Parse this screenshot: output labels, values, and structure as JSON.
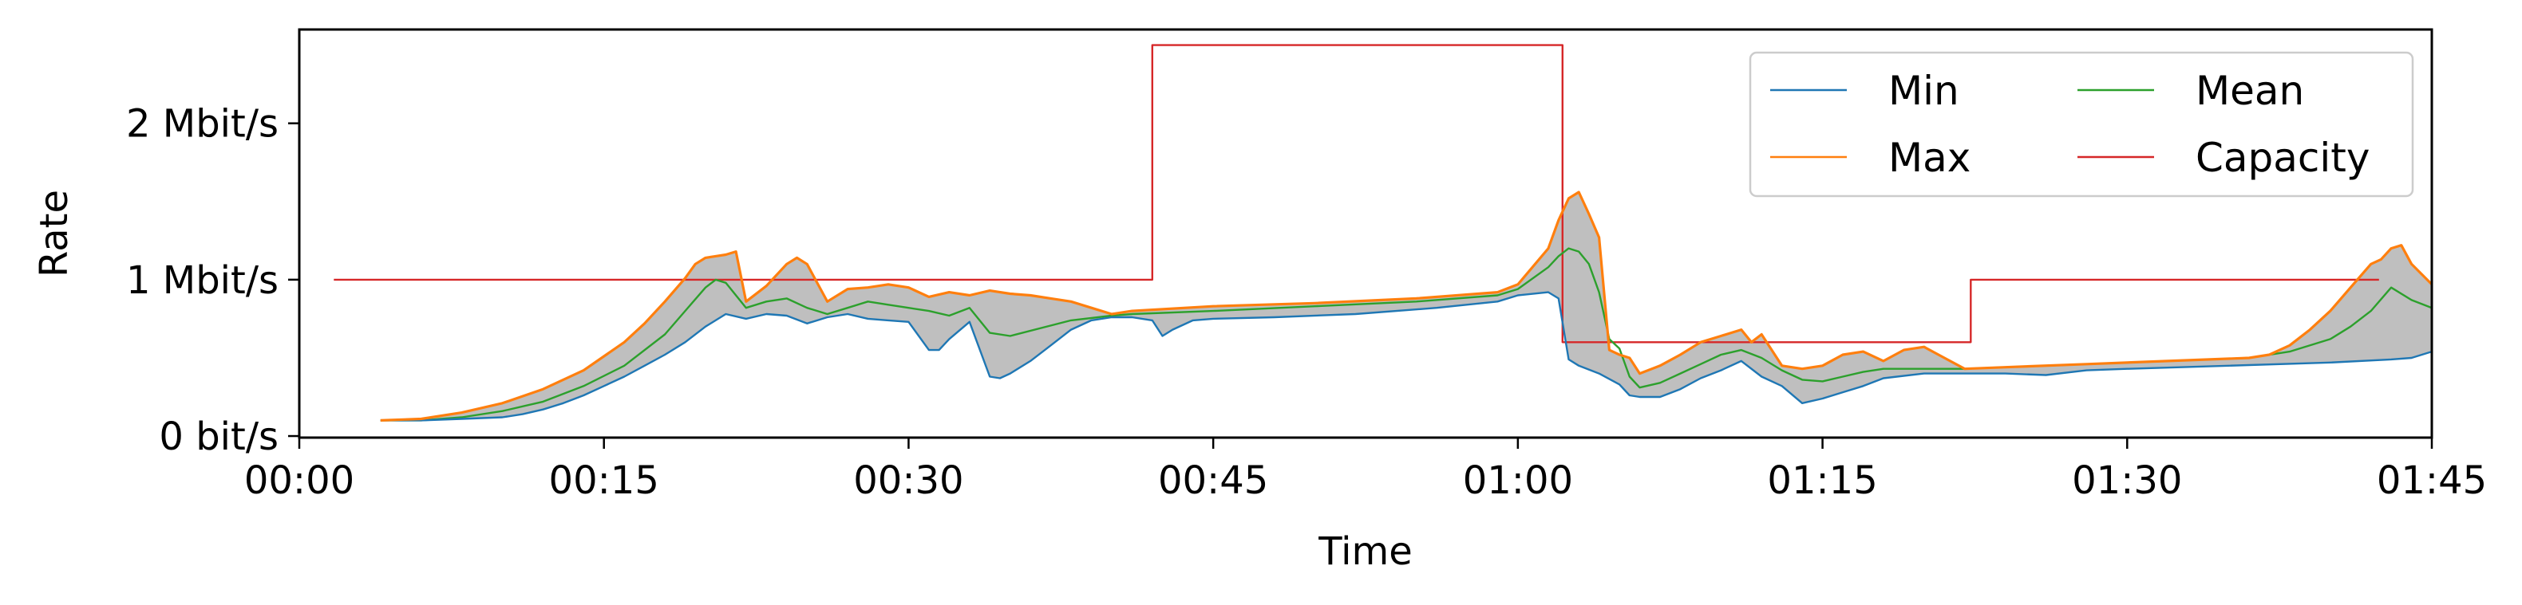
{
  "chart_data": {
    "type": "line",
    "xlabel": "Time",
    "ylabel": "Rate",
    "xlim": [
      0,
      105
    ],
    "ylim": [
      -0.01,
      2.6
    ],
    "x_ticks": [
      {
        "value": 0,
        "label": "00:00"
      },
      {
        "value": 15,
        "label": "00:15"
      },
      {
        "value": 30,
        "label": "00:30"
      },
      {
        "value": 45,
        "label": "00:45"
      },
      {
        "value": 60,
        "label": "01:00"
      },
      {
        "value": 75,
        "label": "01:15"
      },
      {
        "value": 90,
        "label": "01:30"
      },
      {
        "value": 105,
        "label": "01:45"
      }
    ],
    "y_ticks": [
      {
        "value": 0,
        "label": "0 bit/s"
      },
      {
        "value": 1,
        "label": "1 Mbit/s"
      },
      {
        "value": 2,
        "label": "2 Mbit/s"
      }
    ],
    "grid": false,
    "legend": {
      "placement": "top-right",
      "columns": 2
    },
    "band": {
      "between": [
        "Min",
        "Max"
      ],
      "color": "#bfbfbf"
    },
    "series": [
      {
        "name": "Min",
        "color": "#1f77b4",
        "x": [
          4,
          6,
          8,
          10,
          11,
          12,
          13,
          14,
          15,
          16,
          17,
          18,
          19,
          20,
          21,
          22,
          23,
          24,
          25,
          26,
          27,
          28,
          29,
          30,
          31,
          31.5,
          32,
          33,
          34,
          34.5,
          35,
          36,
          37,
          38,
          39,
          40,
          41,
          42,
          42.5,
          43,
          44,
          45,
          48,
          52,
          56,
          59,
          60,
          61.5,
          62,
          62.5,
          63,
          64,
          65,
          65.5,
          66,
          67,
          68,
          69,
          70,
          71,
          72,
          73,
          74,
          75,
          76,
          77,
          78,
          80,
          82,
          84,
          86,
          88,
          90,
          95,
          100,
          103,
          104,
          105
        ],
        "values": [
          0.1,
          0.1,
          0.11,
          0.12,
          0.14,
          0.17,
          0.21,
          0.26,
          0.32,
          0.38,
          0.45,
          0.52,
          0.6,
          0.7,
          0.78,
          0.75,
          0.78,
          0.77,
          0.72,
          0.76,
          0.78,
          0.75,
          0.74,
          0.73,
          0.55,
          0.55,
          0.62,
          0.73,
          0.38,
          0.37,
          0.4,
          0.48,
          0.58,
          0.68,
          0.74,
          0.76,
          0.76,
          0.74,
          0.64,
          0.68,
          0.74,
          0.75,
          0.76,
          0.78,
          0.82,
          0.86,
          0.9,
          0.92,
          0.88,
          0.49,
          0.45,
          0.4,
          0.33,
          0.26,
          0.25,
          0.25,
          0.3,
          0.37,
          0.42,
          0.48,
          0.38,
          0.32,
          0.21,
          0.24,
          0.28,
          0.32,
          0.37,
          0.4,
          0.4,
          0.4,
          0.39,
          0.42,
          0.43,
          0.45,
          0.47,
          0.49,
          0.5,
          0.54
        ]
      },
      {
        "name": "Max",
        "color": "#ff7f0e",
        "x": [
          4,
          6,
          8,
          10,
          12,
          14,
          16,
          17,
          18,
          19,
          19.5,
          20,
          20.5,
          21,
          21.5,
          22,
          23,
          24,
          24.5,
          25,
          26,
          27,
          28,
          29,
          30,
          31,
          32,
          33,
          34,
          35,
          36,
          37,
          38,
          39,
          40,
          41,
          45,
          50,
          55,
          59,
          60,
          61.5,
          62,
          62.5,
          63,
          63.5,
          64,
          64.5,
          65,
          65.5,
          66,
          67,
          68,
          69,
          70,
          71,
          71.5,
          72,
          73,
          74,
          75,
          76,
          77,
          78,
          79,
          80,
          81,
          82,
          84,
          88,
          92,
          96,
          97,
          98,
          99,
          100,
          101,
          102,
          102.5,
          103,
          103.5,
          104,
          105
        ],
        "values": [
          0.1,
          0.11,
          0.15,
          0.21,
          0.3,
          0.42,
          0.6,
          0.72,
          0.86,
          1.01,
          1.1,
          1.14,
          1.15,
          1.16,
          1.18,
          0.86,
          0.96,
          1.1,
          1.14,
          1.1,
          0.86,
          0.94,
          0.95,
          0.97,
          0.95,
          0.89,
          0.92,
          0.9,
          0.93,
          0.91,
          0.9,
          0.88,
          0.86,
          0.82,
          0.78,
          0.8,
          0.83,
          0.85,
          0.88,
          0.92,
          0.97,
          1.2,
          1.38,
          1.52,
          1.56,
          1.42,
          1.27,
          0.55,
          0.52,
          0.5,
          0.4,
          0.45,
          0.52,
          0.6,
          0.64,
          0.68,
          0.6,
          0.65,
          0.45,
          0.43,
          0.45,
          0.52,
          0.54,
          0.48,
          0.55,
          0.57,
          0.5,
          0.43,
          0.44,
          0.46,
          0.48,
          0.5,
          0.52,
          0.58,
          0.68,
          0.8,
          0.95,
          1.1,
          1.13,
          1.2,
          1.22,
          1.1,
          0.97
        ]
      },
      {
        "name": "Mean",
        "color": "#2ca02c",
        "x": [
          4,
          6,
          8,
          10,
          12,
          14,
          16,
          18,
          19,
          20,
          20.5,
          21,
          22,
          23,
          24,
          25,
          26,
          27,
          28,
          29,
          30,
          31,
          32,
          33,
          34,
          35,
          38,
          40,
          41,
          45,
          50,
          55,
          59,
          60,
          61.5,
          62,
          62.5,
          63,
          63.5,
          64,
          64.5,
          65,
          65.5,
          66,
          67,
          68,
          69,
          70,
          71,
          72,
          73,
          74,
          75,
          76,
          77,
          78,
          80,
          82,
          84,
          88,
          92,
          96,
          98,
          100,
          101,
          102,
          103,
          104,
          105
        ],
        "values": [
          0.1,
          0.1,
          0.12,
          0.16,
          0.22,
          0.32,
          0.45,
          0.65,
          0.8,
          0.95,
          1.0,
          0.98,
          0.82,
          0.86,
          0.88,
          0.82,
          0.78,
          0.82,
          0.86,
          0.84,
          0.82,
          0.8,
          0.77,
          0.82,
          0.66,
          0.64,
          0.74,
          0.77,
          0.78,
          0.8,
          0.83,
          0.86,
          0.9,
          0.94,
          1.08,
          1.15,
          1.2,
          1.18,
          1.1,
          0.92,
          0.62,
          0.56,
          0.38,
          0.31,
          0.34,
          0.4,
          0.46,
          0.52,
          0.55,
          0.5,
          0.42,
          0.36,
          0.35,
          0.38,
          0.41,
          0.43,
          0.43,
          0.43,
          0.44,
          0.46,
          0.48,
          0.5,
          0.54,
          0.62,
          0.7,
          0.8,
          0.95,
          0.87,
          0.82
        ]
      },
      {
        "name": "Capacity",
        "color": "#d62728",
        "x": [
          1.7,
          42,
          42,
          62.2,
          62.2,
          82.3,
          82.3,
          102.4
        ],
        "values": [
          1.0,
          1.0,
          2.5,
          2.5,
          0.6,
          0.6,
          1.0,
          1.0
        ]
      }
    ]
  }
}
